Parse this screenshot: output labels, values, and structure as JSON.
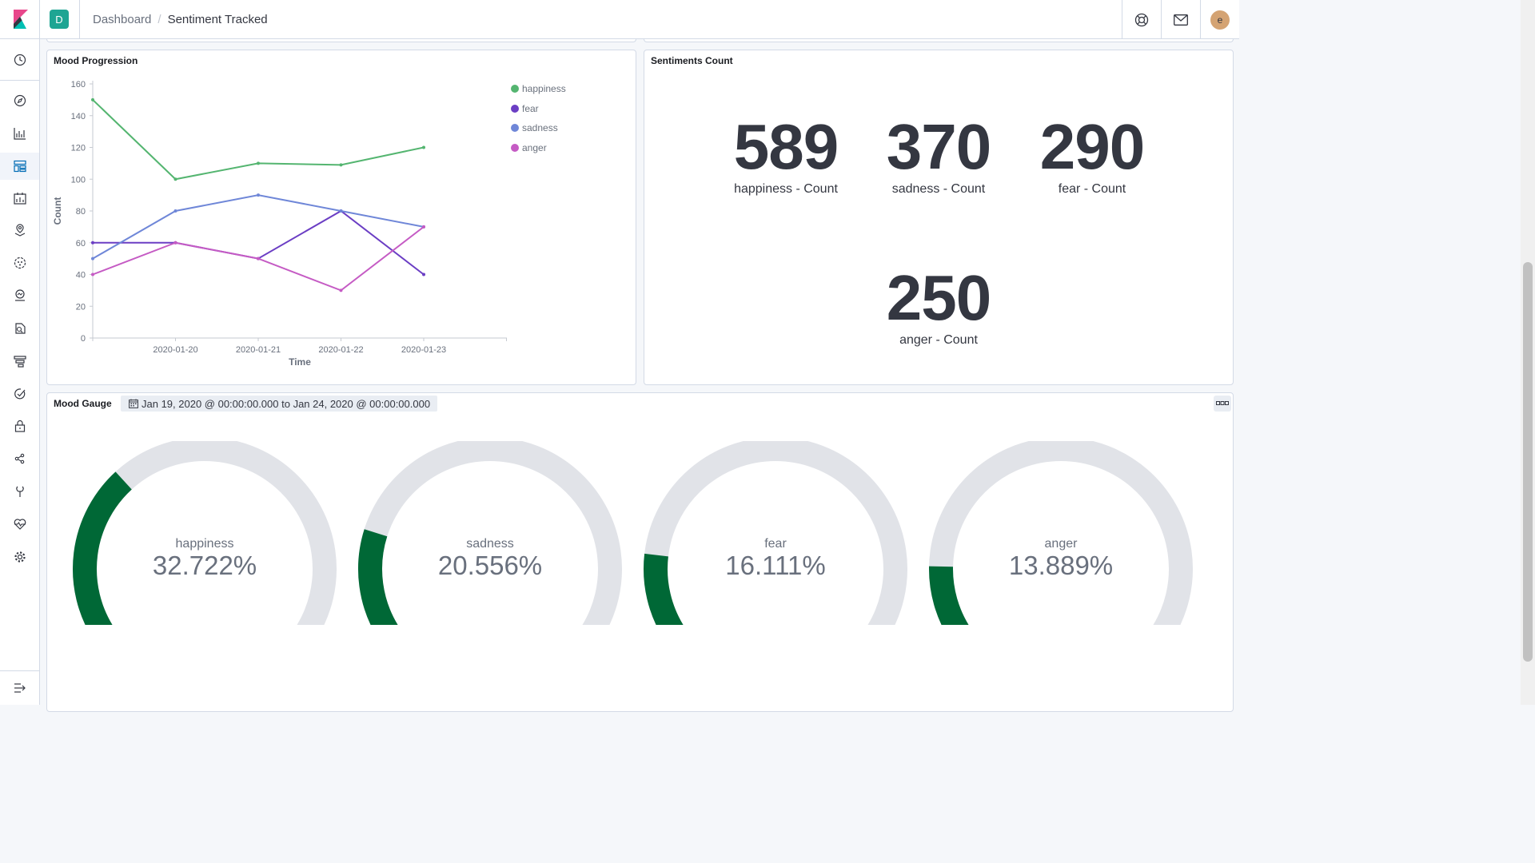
{
  "header": {
    "space_initial": "D",
    "breadcrumbs": [
      "Dashboard",
      "Sentiment Tracked"
    ],
    "user_initial": "e"
  },
  "panels": {
    "mood_progression": {
      "title": "Mood Progression"
    },
    "sentiments_count": {
      "title": "Sentiments Count",
      "metrics": [
        {
          "value": "589",
          "label": "happiness - Count"
        },
        {
          "value": "370",
          "label": "sadness - Count"
        },
        {
          "value": "290",
          "label": "fear - Count"
        },
        {
          "value": "250",
          "label": "anger - Count"
        }
      ]
    },
    "mood_gauge": {
      "title": "Mood Gauge",
      "time_range": "Jan 19, 2020 @ 00:00:00.000 to Jan 24, 2020 @ 00:00:00.000",
      "gauges": [
        {
          "label": "happiness",
          "value_text": "32.722%",
          "value": 32.722
        },
        {
          "label": "sadness",
          "value_text": "20.556%",
          "value": 20.556
        },
        {
          "label": "fear",
          "value_text": "16.111%",
          "value": 16.111
        },
        {
          "label": "anger",
          "value_text": "13.889%",
          "value": 13.889
        }
      ],
      "colors": {
        "fill": "#006836",
        "track": "#e1e3e8"
      }
    }
  },
  "chart_data": {
    "type": "line",
    "title": "Mood Progression",
    "xlabel": "Time",
    "ylabel": "Count",
    "x_ticks": [
      "2020-01-20",
      "2020-01-21",
      "2020-01-22",
      "2020-01-23"
    ],
    "x": [
      "2020-01-19",
      "2020-01-20",
      "2020-01-21",
      "2020-01-22",
      "2020-01-23"
    ],
    "y_ticks": [
      0,
      20,
      40,
      60,
      80,
      100,
      120,
      140,
      160
    ],
    "ylim": [
      0,
      160
    ],
    "legend_position": "top-right",
    "series": [
      {
        "name": "happiness",
        "color": "#54b570",
        "values": [
          150,
          100,
          110,
          109,
          120
        ]
      },
      {
        "name": "fear",
        "color": "#6b3ec4",
        "values": [
          60,
          60,
          50,
          80,
          40
        ]
      },
      {
        "name": "sadness",
        "color": "#6f87d8",
        "values": [
          50,
          80,
          90,
          80,
          70
        ]
      },
      {
        "name": "anger",
        "color": "#c55bc4",
        "values": [
          40,
          60,
          50,
          30,
          70
        ]
      }
    ]
  }
}
